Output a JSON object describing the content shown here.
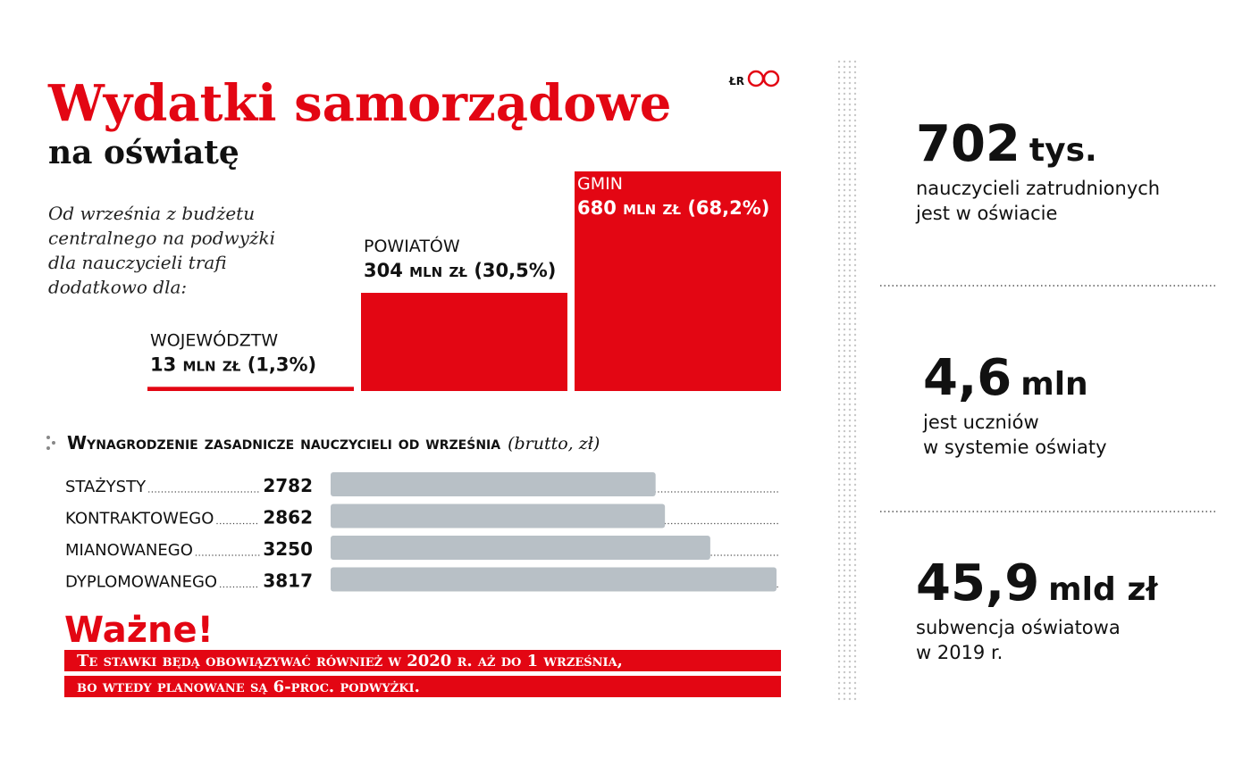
{
  "title": "Wydatki samorządowe",
  "subtitle": "na oświatę",
  "credit": "ŁR",
  "chart_data": [
    {
      "type": "bar",
      "description": [
        "Od września z budżetu",
        "centralnego na podwyżki",
        "dla nauczycieli trafi",
        "dodatkowo dla:"
      ],
      "categories": [
        "WOJEWÓDZTW",
        "POWIATÓW",
        "GMIN"
      ],
      "values": [
        13,
        304,
        680
      ],
      "value_labels": [
        "13 mln zł (1,3%)",
        "304 mln zł (30,5%)",
        "680 mln zł (68,2%)"
      ],
      "color": "#e30613",
      "ylim": [
        0,
        680
      ]
    },
    {
      "type": "hbar",
      "title": "Wynagrodzenie zasadnicze nauczycieli od września",
      "unit": "(brutto, zł)",
      "categories": [
        "STAŻYSTY",
        "KONTRAKTOWEGO",
        "MIANOWANEGO",
        "DYPLOMOWANEGO"
      ],
      "values": [
        2782,
        2862,
        3250,
        3817
      ],
      "color": "#b8c0c6",
      "xlim": [
        0,
        3817
      ]
    }
  ],
  "note": {
    "heading": "Ważne!",
    "lines": [
      "Te stawki będą obowiązywać również w 2020 r. aż do 1 września,",
      "bo wtedy planowane są 6-proc. podwyżki."
    ]
  },
  "stats": [
    {
      "value": "702",
      "unit": "tys.",
      "lines": [
        "nauczycieli zatrudnionych",
        "jest w oświacie"
      ]
    },
    {
      "value": "4,6",
      "unit": "mln",
      "lines": [
        "jest uczniów",
        "w systemie oświaty"
      ]
    },
    {
      "value": "45,9",
      "unit": "mld zł",
      "lines": [
        "subwencja oświatowa",
        "w 2019 r."
      ]
    }
  ]
}
